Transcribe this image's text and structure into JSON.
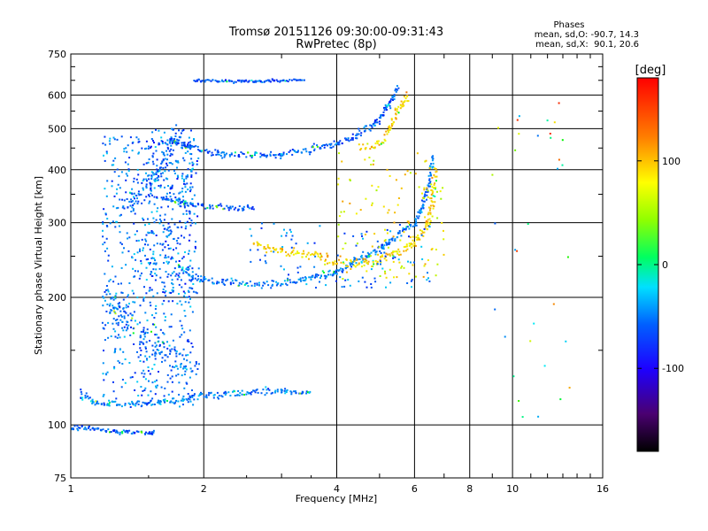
{
  "chart_data": {
    "type": "scatter",
    "title": "Tromsø 20151126 09:30:00-09:31:43",
    "subtitle": "RwPretec (8p)",
    "xlabel": "Frequency [MHz]",
    "ylabel": "Stationary phase Virtual Height [km]",
    "xscale": "log",
    "yscale": "log",
    "xlim": [
      1,
      16
    ],
    "ylim": [
      75,
      750
    ],
    "x_ticks": [
      "1",
      "2",
      "4",
      "6",
      "8",
      "10",
      "16"
    ],
    "y_ticks": [
      "75",
      "100",
      "200",
      "300",
      "400",
      "500",
      "600",
      "750"
    ],
    "grid": true,
    "legend": {
      "title": "Phases",
      "lines": [
        "mean, sd,O: -90.7, 14.3",
        "mean, sd,X:  90.1, 20.6"
      ],
      "position": "top-right"
    },
    "colorbar": {
      "label": "[deg]",
      "range": [
        -180,
        180
      ],
      "ticks": [
        "100",
        "0",
        "-100"
      ],
      "colormap": "rainbow",
      "position": "right"
    },
    "traces": [
      {
        "kind": "curve",
        "points": [
          [
            1.0,
            98
          ],
          [
            1.05,
            99
          ],
          [
            1.1,
            98
          ],
          [
            1.2,
            97
          ],
          [
            1.35,
            96
          ],
          [
            1.5,
            96
          ],
          [
            1.55,
            95
          ]
        ],
        "phase": -110,
        "jitter": 0.01
      },
      {
        "kind": "curve",
        "points": [
          [
            1.05,
            118
          ],
          [
            1.15,
            112
          ],
          [
            1.4,
            112
          ],
          [
            1.7,
            114
          ],
          [
            2.0,
            117
          ],
          [
            2.5,
            119
          ],
          [
            3.0,
            120
          ],
          [
            3.5,
            119
          ]
        ],
        "phase": -100,
        "jitter": 0.015
      },
      {
        "kind": "curve",
        "points": [
          [
            1.2,
            200
          ],
          [
            1.3,
            180
          ],
          [
            1.4,
            170
          ],
          [
            1.6,
            150
          ],
          [
            1.75,
            140
          ],
          [
            1.9,
            135
          ]
        ],
        "phase": -105,
        "jitter": 0.06
      },
      {
        "kind": "curve",
        "points": [
          [
            1.3,
            330
          ],
          [
            1.4,
            340
          ],
          [
            1.5,
            370
          ],
          [
            1.6,
            420
          ],
          [
            1.7,
            470
          ],
          [
            1.75,
            500
          ]
        ],
        "phase": -110,
        "jitter": 0.05
      },
      {
        "kind": "curve",
        "points": [
          [
            1.75,
            235
          ],
          [
            2.0,
            220
          ],
          [
            2.5,
            215
          ],
          [
            3.0,
            216
          ],
          [
            3.5,
            222
          ],
          [
            4.0,
            230
          ],
          [
            4.5,
            245
          ],
          [
            5.0,
            260
          ],
          [
            5.5,
            280
          ],
          [
            6.0,
            300
          ],
          [
            6.3,
            330
          ],
          [
            6.5,
            380
          ],
          [
            6.6,
            430
          ]
        ],
        "phase": -100,
        "jitter": 0.015
      },
      {
        "kind": "curve",
        "points": [
          [
            2.6,
            265
          ],
          [
            3.0,
            255
          ],
          [
            3.5,
            250
          ],
          [
            4.0,
            242
          ],
          [
            4.5,
            240
          ],
          [
            5.0,
            245
          ],
          [
            5.5,
            255
          ],
          [
            6.0,
            270
          ],
          [
            6.4,
            290
          ],
          [
            6.6,
            330
          ],
          [
            6.7,
            400
          ]
        ],
        "phase": 110,
        "jitter": 0.02
      },
      {
        "kind": "curve",
        "points": [
          [
            1.7,
            470
          ],
          [
            1.9,
            450
          ],
          [
            2.2,
            435
          ],
          [
            2.6,
            433
          ],
          [
            3.0,
            437
          ],
          [
            3.5,
            447
          ],
          [
            4.0,
            462
          ],
          [
            4.5,
            485
          ],
          [
            5.0,
            525
          ],
          [
            5.3,
            580
          ],
          [
            5.5,
            630
          ]
        ],
        "phase": -110,
        "jitter": 0.015
      },
      {
        "kind": "curve",
        "points": [
          [
            4.5,
            450
          ],
          [
            5.0,
            460
          ],
          [
            5.3,
            500
          ],
          [
            5.5,
            550
          ],
          [
            5.8,
            600
          ]
        ],
        "phase": 115,
        "jitter": 0.02
      },
      {
        "kind": "curve",
        "points": [
          [
            1.9,
            650
          ],
          [
            2.2,
            648
          ],
          [
            2.6,
            646
          ],
          [
            3.0,
            648
          ],
          [
            3.4,
            652
          ]
        ],
        "phase": -110,
        "jitter": 0.006
      },
      {
        "kind": "curve",
        "points": [
          [
            1.6,
            345
          ],
          [
            1.8,
            335
          ],
          [
            2.0,
            327
          ],
          [
            2.4,
            325
          ],
          [
            2.6,
            327
          ]
        ],
        "phase": -110,
        "jitter": 0.012
      },
      {
        "kind": "cloud",
        "xrange": [
          1.18,
          1.9
        ],
        "yrange": [
          110,
          480
        ],
        "phase": -100,
        "count": 650
      },
      {
        "kind": "cloud",
        "xrange": [
          1.5,
          1.95
        ],
        "yrange": [
          200,
          500
        ],
        "phase": -110,
        "count": 180
      },
      {
        "kind": "cloud",
        "xrange": [
          4.0,
          7.0
        ],
        "yrange": [
          220,
          440
        ],
        "phase": 100,
        "count": 120
      },
      {
        "kind": "cloud",
        "xrange": [
          2.5,
          6.5
        ],
        "yrange": [
          210,
          300
        ],
        "phase": -100,
        "count": 110
      },
      {
        "kind": "cloud",
        "xrange": [
          9.0,
          13.5
        ],
        "yrange": [
          100,
          620
        ],
        "phase": 20,
        "count": 34
      }
    ]
  }
}
